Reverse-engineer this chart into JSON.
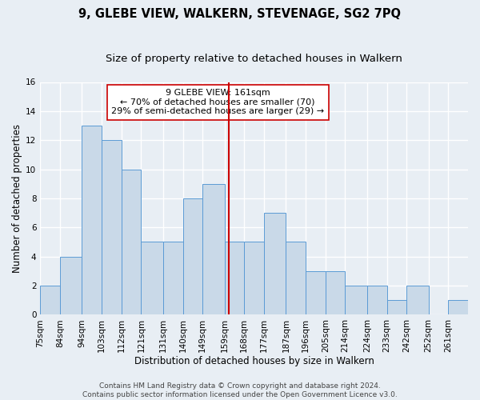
{
  "title": "9, GLEBE VIEW, WALKERN, STEVENAGE, SG2 7PQ",
  "subtitle": "Size of property relative to detached houses in Walkern",
  "xlabel": "Distribution of detached houses by size in Walkern",
  "ylabel": "Number of detached properties",
  "bin_labels": [
    "75sqm",
    "84sqm",
    "94sqm",
    "103sqm",
    "112sqm",
    "121sqm",
    "131sqm",
    "140sqm",
    "149sqm",
    "159sqm",
    "168sqm",
    "177sqm",
    "187sqm",
    "196sqm",
    "205sqm",
    "214sqm",
    "224sqm",
    "233sqm",
    "242sqm",
    "252sqm",
    "261sqm"
  ],
  "bin_edges": [
    75,
    84,
    94,
    103,
    112,
    121,
    131,
    140,
    149,
    159,
    168,
    177,
    187,
    196,
    205,
    214,
    224,
    233,
    242,
    252,
    261,
    270
  ],
  "counts": [
    2,
    4,
    13,
    12,
    10,
    5,
    5,
    8,
    9,
    5,
    5,
    7,
    5,
    3,
    3,
    2,
    2,
    1,
    2,
    0,
    1
  ],
  "bar_facecolor": "#c9d9e8",
  "bar_edgecolor": "#5b9bd5",
  "property_value": 161,
  "vline_color": "#cc0000",
  "annotation_text": "9 GLEBE VIEW: 161sqm\n← 70% of detached houses are smaller (70)\n29% of semi-detached houses are larger (29) →",
  "annotation_box_edgecolor": "#cc0000",
  "annotation_box_facecolor": "#ffffff",
  "ylim": [
    0,
    16
  ],
  "yticks": [
    0,
    2,
    4,
    6,
    8,
    10,
    12,
    14,
    16
  ],
  "background_color": "#e8eef4",
  "axes_facecolor": "#e8eef4",
  "grid_color": "#ffffff",
  "footer_text": "Contains HM Land Registry data © Crown copyright and database right 2024.\nContains public sector information licensed under the Open Government Licence v3.0.",
  "title_fontsize": 10.5,
  "subtitle_fontsize": 9.5,
  "xlabel_fontsize": 8.5,
  "ylabel_fontsize": 8.5,
  "tick_fontsize": 7.5,
  "annotation_fontsize": 8,
  "footer_fontsize": 6.5
}
